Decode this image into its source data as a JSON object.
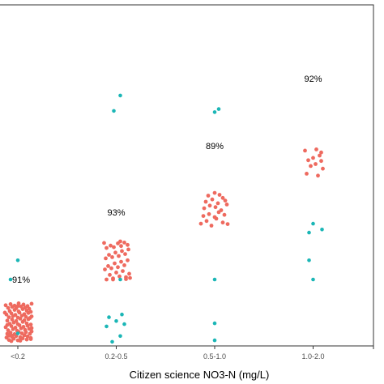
{
  "chart_data": {
    "type": "scatter",
    "xlabel": "Citizen science NO3-N (mg/L)",
    "categories": [
      "<0.2",
      "0.2-0.5",
      "0.5-1.0",
      "1.0-2.0"
    ],
    "annotations": [
      "91%",
      "93%",
      "89%",
      "92%"
    ],
    "grid": false,
    "colors": {
      "agree": "#ee6a5f",
      "disagree": "#1bb6b6",
      "axis": "#333333",
      "tick_text": "#4d4d4d"
    },
    "series": [
      {
        "values": [
          {
            "x": 0,
            "y": [
              [
                -0.14,
                0.09
              ],
              [
                -0.11,
                0.14
              ],
              [
                -0.07,
                0.11
              ],
              [
                -0.02,
                0.13
              ],
              [
                0.03,
                0.1
              ],
              [
                0.08,
                0.15
              ],
              [
                0.12,
                0.12
              ],
              [
                0.16,
                0.08
              ],
              [
                -0.13,
                0.19
              ],
              [
                -0.09,
                0.22
              ],
              [
                -0.04,
                0.18
              ],
              [
                0.01,
                0.24
              ],
              [
                0.05,
                0.2
              ],
              [
                0.1,
                0.23
              ],
              [
                0.15,
                0.19
              ],
              [
                -0.12,
                0.28
              ],
              [
                -0.06,
                0.31
              ],
              [
                -0.01,
                0.27
              ],
              [
                0.04,
                0.33
              ],
              [
                0.09,
                0.29
              ],
              [
                0.14,
                0.32
              ],
              [
                -0.15,
                0.36
              ],
              [
                -0.08,
                0.39
              ],
              [
                -0.03,
                0.35
              ],
              [
                0.02,
                0.41
              ],
              [
                0.07,
                0.37
              ],
              [
                0.12,
                0.4
              ],
              [
                0.17,
                0.34
              ],
              [
                -0.1,
                0.45
              ],
              [
                -0.05,
                0.48
              ],
              [
                0.0,
                0.44
              ],
              [
                0.06,
                0.5
              ],
              [
                0.11,
                0.46
              ],
              [
                0.16,
                0.43
              ],
              [
                -0.13,
                0.53
              ],
              [
                -0.07,
                0.56
              ],
              [
                -0.02,
                0.52
              ],
              [
                0.03,
                0.58
              ],
              [
                0.08,
                0.54
              ],
              [
                0.13,
                0.57
              ],
              [
                -0.11,
                0.62
              ],
              [
                -0.06,
                0.65
              ],
              [
                0.0,
                0.61
              ],
              [
                0.05,
                0.66
              ],
              [
                0.1,
                0.63
              ],
              [
                0.15,
                0.6
              ],
              [
                -0.14,
                0.69
              ],
              [
                -0.08,
                0.72
              ],
              [
                -0.03,
                0.68
              ],
              [
                0.02,
                0.74
              ],
              [
                0.08,
                0.7
              ],
              [
                0.13,
                0.73
              ],
              [
                -0.1,
                0.78
              ],
              [
                -0.04,
                0.81
              ],
              [
                0.01,
                0.77
              ],
              [
                0.06,
                0.83
              ],
              [
                0.11,
                0.79
              ],
              [
                0.16,
                0.76
              ],
              [
                -0.12,
                0.86
              ],
              [
                -0.07,
                0.89
              ],
              [
                -0.02,
                0.85
              ],
              [
                0.04,
                0.9
              ],
              [
                0.09,
                0.87
              ],
              [
                0.14,
                0.84
              ],
              [
                -0.15,
                0.93
              ],
              [
                -0.09,
                0.96
              ],
              [
                -0.04,
                0.92
              ],
              [
                0.01,
                0.98
              ],
              [
                0.07,
                0.95
              ],
              [
                0.12,
                0.91
              ],
              [
                0.17,
                0.97
              ],
              [
                -0.11,
                0.03
              ],
              [
                -0.05,
                0.06
              ],
              [
                0.0,
                0.02
              ],
              [
                0.06,
                0.07
              ],
              [
                0.11,
                0.04
              ],
              [
                0.16,
                0.05
              ],
              [
                -0.08,
                0.0
              ],
              [
                0.03,
                0.01
              ],
              [
                -0.13,
                0.42
              ],
              [
                0.17,
                0.25
              ],
              [
                -0.16,
                0.74
              ],
              [
                0.17,
                0.64
              ],
              [
                0.0,
                0.91
              ],
              [
                -0.07,
                0.14
              ]
            ]
          },
          {
            "x": 1,
            "y": [
              [
                -0.12,
                1.6
              ],
              [
                -0.08,
                1.72
              ],
              [
                -0.04,
                1.63
              ],
              [
                0.0,
                1.78
              ],
              [
                0.04,
                1.68
              ],
              [
                0.08,
                1.82
              ],
              [
                0.12,
                1.66
              ],
              [
                0.16,
                1.75
              ],
              [
                -0.14,
                1.86
              ],
              [
                -0.1,
                1.95
              ],
              [
                -0.06,
                1.89
              ],
              [
                -0.02,
                2.02
              ],
              [
                0.02,
                1.92
              ],
              [
                0.06,
                2.06
              ],
              [
                0.1,
                1.97
              ],
              [
                0.14,
                2.1
              ],
              [
                -0.13,
                2.15
              ],
              [
                -0.09,
                2.24
              ],
              [
                -0.05,
                2.18
              ],
              [
                -0.01,
                2.3
              ],
              [
                0.03,
                2.21
              ],
              [
                0.07,
                2.34
              ],
              [
                0.11,
                2.26
              ],
              [
                0.15,
                2.38
              ],
              [
                -0.12,
                2.42
              ],
              [
                -0.07,
                2.48
              ],
              [
                -0.03,
                2.44
              ],
              [
                0.02,
                2.54
              ],
              [
                0.06,
                2.47
              ],
              [
                0.1,
                2.56
              ],
              [
                0.14,
                2.5
              ],
              [
                -0.15,
                2.55
              ],
              [
                0.05,
                2.59
              ],
              [
                -0.04,
                1.6
              ],
              [
                0.12,
                1.61
              ],
              [
                0.17,
                1.64
              ]
            ]
          },
          {
            "x": 2,
            "y": [
              [
                -0.17,
                3.05
              ],
              [
                -0.1,
                3.12
              ],
              [
                -0.04,
                3.0
              ],
              [
                0.02,
                3.18
              ],
              [
                0.1,
                3.08
              ],
              [
                0.16,
                3.04
              ],
              [
                -0.14,
                3.25
              ],
              [
                -0.07,
                3.3
              ],
              [
                0.0,
                3.22
              ],
              [
                0.05,
                3.35
              ],
              [
                0.12,
                3.28
              ],
              [
                -0.13,
                3.45
              ],
              [
                -0.06,
                3.52
              ],
              [
                0.01,
                3.48
              ],
              [
                0.08,
                3.4
              ],
              [
                0.15,
                3.55
              ],
              [
                -0.11,
                3.62
              ],
              [
                -0.03,
                3.68
              ],
              [
                0.04,
                3.58
              ],
              [
                0.1,
                3.72
              ],
              [
                -0.08,
                3.78
              ],
              [
                0.0,
                3.85
              ],
              [
                0.06,
                3.8
              ],
              [
                0.13,
                3.65
              ]
            ]
          },
          {
            "x": 3,
            "y": [
              [
                -0.08,
                4.35
              ],
              [
                0.06,
                4.3
              ],
              [
                0.12,
                4.48
              ],
              [
                -0.03,
                4.55
              ],
              [
                0.03,
                4.6
              ],
              [
                0.1,
                4.68
              ],
              [
                -0.06,
                4.7
              ],
              [
                0.0,
                4.76
              ],
              [
                0.08,
                4.82
              ],
              [
                -0.1,
                4.95
              ],
              [
                0.04,
                4.98
              ],
              [
                0.1,
                4.9
              ]
            ]
          }
        ]
      },
      {
        "values": [
          {
            "x": 0,
            "y": [
              [
                0.0,
                0.2
              ],
              [
                -0.09,
                1.6
              ],
              [
                0.0,
                2.1
              ]
            ]
          },
          {
            "x": 1,
            "y": [
              [
                -0.05,
                -0.02
              ],
              [
                0.05,
                0.13
              ],
              [
                -0.12,
                0.38
              ],
              [
                0.0,
                0.52
              ],
              [
                0.1,
                0.44
              ],
              [
                -0.09,
                0.62
              ],
              [
                0.07,
                0.69
              ],
              [
                0.05,
                1.6
              ],
              [
                -0.03,
                5.98
              ],
              [
                0.05,
                6.38
              ]
            ]
          },
          {
            "x": 2,
            "y": [
              [
                0.0,
                0.02
              ],
              [
                0.0,
                0.46
              ],
              [
                0.0,
                1.6
              ],
              [
                0.0,
                5.95
              ],
              [
                0.05,
                6.03
              ]
            ]
          },
          {
            "x": 3,
            "y": [
              [
                0.0,
                1.6
              ],
              [
                -0.05,
                2.1
              ],
              [
                0.0,
                3.05
              ],
              [
                0.11,
                2.9
              ],
              [
                -0.05,
                2.82
              ]
            ]
          }
        ]
      }
    ]
  }
}
